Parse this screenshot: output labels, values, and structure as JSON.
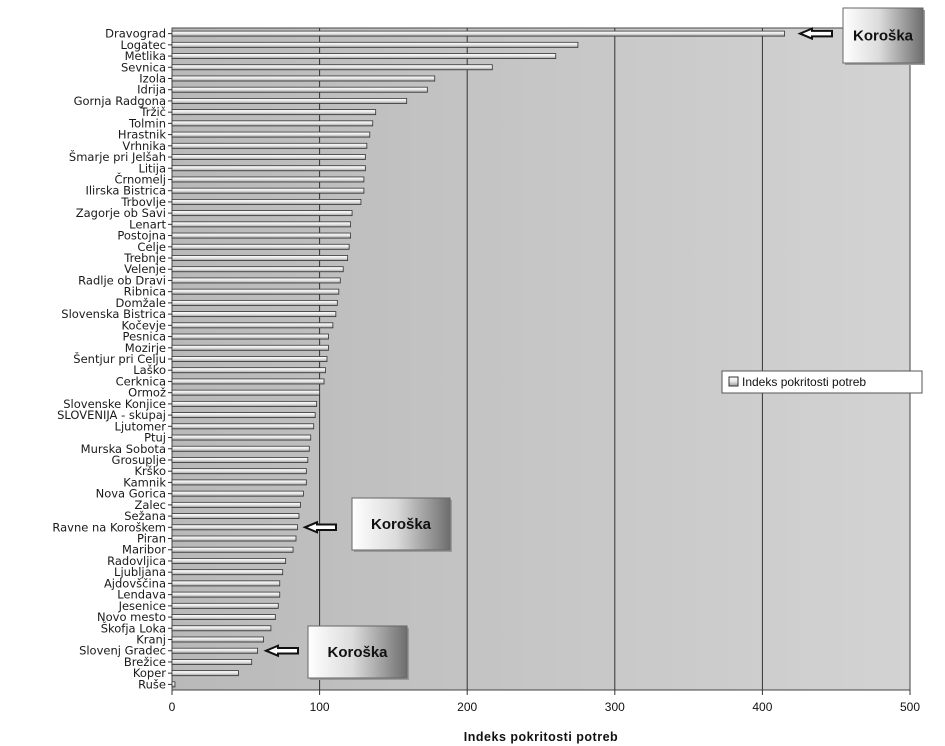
{
  "chart_data": {
    "type": "bar",
    "orientation": "horizontal",
    "categories": [
      "Dravograd",
      "Logatec",
      "Metlika",
      "Sevnica",
      "Izola",
      "Idrija",
      "Gornja Radgona",
      "Tržič",
      "Tolmin",
      "Hrastnik",
      "Vrhnika",
      "Šmarje pri Jelšah",
      "Litija",
      "Črnomelj",
      "Ilirska Bistrica",
      "Trbovlje",
      "Zagorje ob Savi",
      "Lenart",
      "Postojna",
      "Celje",
      "Trebnje",
      "Velenje",
      "Radlje ob Dravi",
      "Ribnica",
      "Domžale",
      "Slovenska Bistrica",
      "Kočevje",
      "Pesnica",
      "Mozirje",
      "Šentjur pri Celju",
      "Laško",
      "Cerknica",
      "Ormož",
      "Slovenske Konjice",
      "SLOVENIJA - skupaj",
      "Ljutomer",
      "Ptuj",
      "Murska Sobota",
      "Grosuplje",
      "Krško",
      "Kamnik",
      "Nova Gorica",
      "Zalec",
      "Sežana",
      "Ravne na Koroškem",
      "Piran",
      "Maribor",
      "Radovljica",
      "Ljubljana",
      "Ajdovščina",
      "Lendava",
      "Jesenice",
      "Novo mesto",
      "Škofja Loka",
      "Kranj",
      "Slovenj Gradec",
      "Brežice",
      "Koper",
      "Ruše"
    ],
    "series": [
      {
        "name": "Indeks pokritosti potreb",
        "values": [
          415,
          275,
          260,
          217,
          178,
          173,
          159,
          138,
          136,
          134,
          132,
          131,
          131,
          130,
          130,
          128,
          122,
          121,
          121,
          120,
          119,
          116,
          114,
          113,
          112,
          111,
          109,
          106,
          106,
          105,
          104,
          103,
          100,
          98,
          97,
          96,
          94,
          93,
          92,
          91,
          91,
          89,
          87,
          86,
          85,
          84,
          82,
          77,
          75,
          73,
          73,
          72,
          70,
          67,
          62,
          58,
          54,
          45,
          2
        ]
      }
    ],
    "xlabel": "Indeks pokritosti potreb",
    "ylabel": "",
    "xlim": [
      0,
      500
    ],
    "xticks": [
      0,
      100,
      200,
      300,
      400,
      500
    ],
    "grid": "vertical",
    "legend": "right",
    "annotations": [
      {
        "text": "Koroška",
        "target": "Dravograd"
      },
      {
        "text": "Koroška",
        "target": "Ravne na Koroškem"
      },
      {
        "text": "Koroška",
        "target": "Slovenj Gradec"
      }
    ],
    "colors": {
      "plot_bg": "#c7c7c7",
      "bar_fill": "#f2f2f2",
      "bar_stroke": "#333333"
    }
  }
}
